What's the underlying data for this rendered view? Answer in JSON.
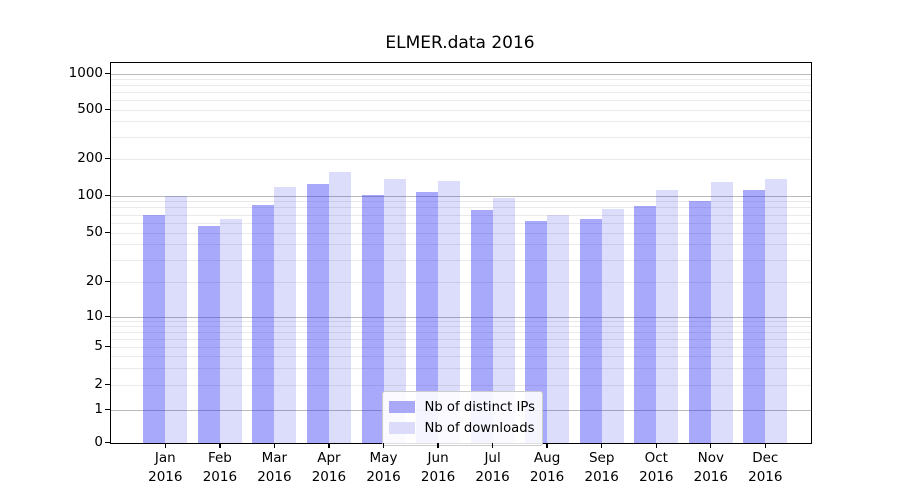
{
  "chart_data": {
    "type": "bar",
    "title": "ELMER.data 2016",
    "categories": [
      "Jan",
      "Feb",
      "Mar",
      "Apr",
      "May",
      "Jun",
      "Jul",
      "Aug",
      "Sep",
      "Oct",
      "Nov",
      "Dec"
    ],
    "year_label": "2016",
    "series": [
      {
        "name": "Nb of distinct IPs",
        "color": "#a9a9f7",
        "values": [
          70,
          57,
          83,
          125,
          101,
          107,
          77,
          62,
          65,
          82,
          90,
          110
        ]
      },
      {
        "name": "Nb of downloads",
        "color": "#dcdcfa",
        "values": [
          100,
          64,
          118,
          155,
          137,
          132,
          96,
          70,
          78,
          110,
          130,
          136
        ]
      }
    ],
    "yscale": "symlog",
    "yticks": [
      0,
      1,
      2,
      5,
      10,
      20,
      50,
      100,
      200,
      500,
      1000
    ],
    "ylim": [
      0,
      1000
    ],
    "grid": true,
    "legend_position": "lower center"
  }
}
